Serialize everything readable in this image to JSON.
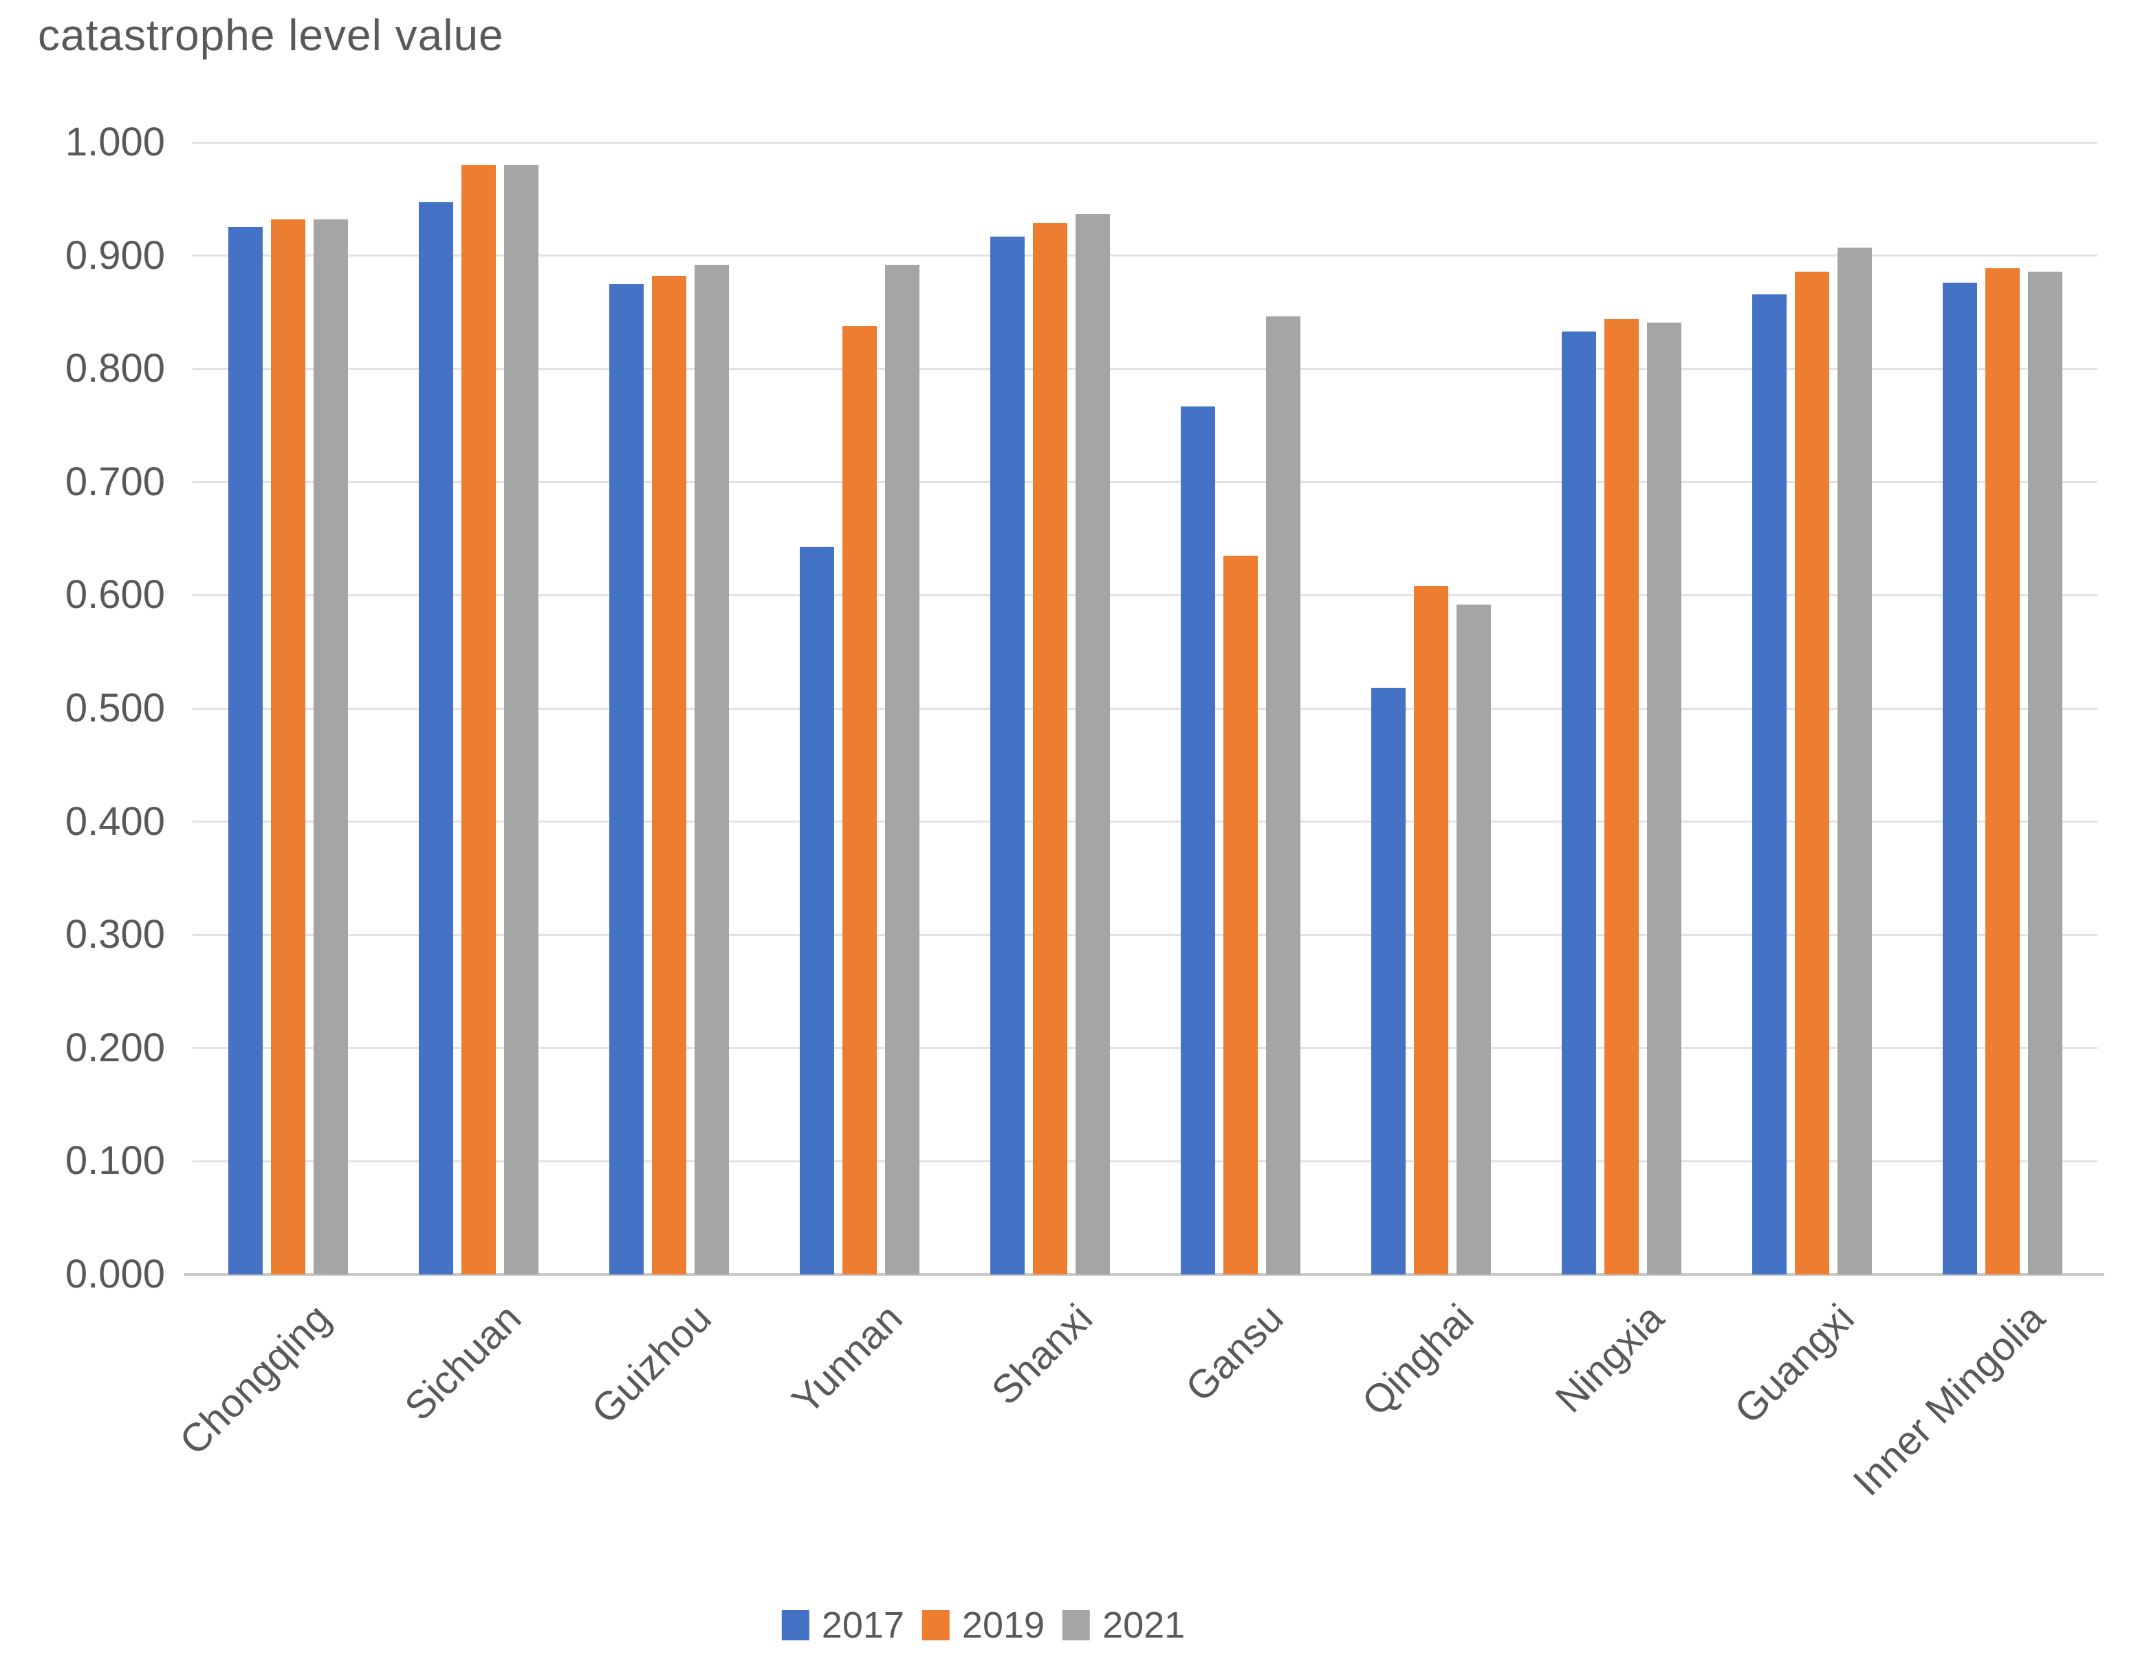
{
  "title": "catastrophe level value",
  "y_axis": {
    "tick_labels": [
      "0.000",
      "0.100",
      "0.200",
      "0.300",
      "0.400",
      "0.500",
      "0.600",
      "0.700",
      "0.800",
      "0.900",
      "1.000"
    ]
  },
  "legend": {
    "items": [
      {
        "label": "2017",
        "color": "#4472C4"
      },
      {
        "label": "2019",
        "color": "#ED7D31"
      },
      {
        "label": "2021",
        "color": "#A5A5A5"
      }
    ]
  },
  "colors": {
    "text": "#595959",
    "gridline": "#E2E2E2",
    "axis_line": "#C9C9C9",
    "series_2017": "#4472C4",
    "series_2019": "#ED7D31",
    "series_2021": "#A5A5A5"
  },
  "chart_data": {
    "type": "bar",
    "title": "catastrophe level value",
    "xlabel": "",
    "ylabel": "",
    "ylim": [
      0,
      1
    ],
    "ytick_step": 0.1,
    "ytick_decimals": 3,
    "grid": true,
    "legend_position": "bottom",
    "categories": [
      "Chongqing",
      "Sichuan",
      "Guizhou",
      "Yunnan",
      "Shanxi",
      "Gansu",
      "Qinghai",
      "Ningxia",
      "Guangxi",
      "Inner Mingolia"
    ],
    "series": [
      {
        "name": "2017",
        "color": "#4472C4",
        "values": [
          0.925,
          0.947,
          0.875,
          0.643,
          0.917,
          0.767,
          0.518,
          0.833,
          0.866,
          0.876
        ]
      },
      {
        "name": "2019",
        "color": "#ED7D31",
        "values": [
          0.932,
          0.98,
          0.882,
          0.838,
          0.929,
          0.635,
          0.608,
          0.844,
          0.886,
          0.889
        ]
      },
      {
        "name": "2021",
        "color": "#A5A5A5",
        "values": [
          0.932,
          0.98,
          0.892,
          0.892,
          0.937,
          0.846,
          0.592,
          0.841,
          0.907,
          0.886
        ]
      }
    ]
  }
}
